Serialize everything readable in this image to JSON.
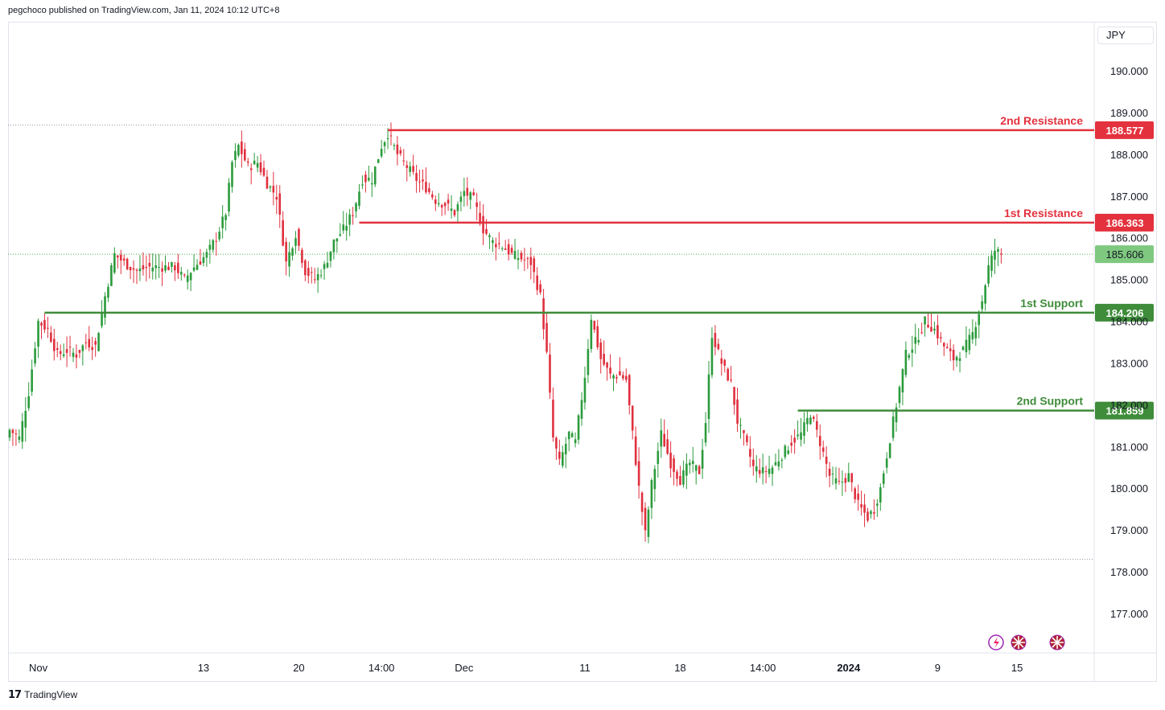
{
  "header": {
    "published": "pegchoco published on TradingView.com, Jan 11, 2024 10:12 UTC+8"
  },
  "footer": {
    "brand": "TradingView"
  },
  "price_scale": {
    "currency": "JPY"
  },
  "colors": {
    "up": "#2b9b3c",
    "down": "#e0303e",
    "resistance": "#e3323e",
    "support": "#3f8c3a",
    "last_price_bg": "#7fc87f"
  },
  "chart_data": {
    "type": "candlestick",
    "symbol_currency": "JPY",
    "ylim": [
      176.1,
      191.0
    ],
    "y_ticks": [
      "190.000",
      "189.000",
      "188.000",
      "187.000",
      "186.000",
      "185.000",
      "184.000",
      "183.000",
      "182.000",
      "181.000",
      "180.000",
      "179.000",
      "178.000",
      "177.000"
    ],
    "x_labels": [
      {
        "label": "Nov",
        "bold": false,
        "index": 9
      },
      {
        "label": "13",
        "bold": false,
        "index": 61
      },
      {
        "label": "20",
        "bold": false,
        "index": 91
      },
      {
        "label": "14:00",
        "bold": false,
        "index": 117
      },
      {
        "label": "Dec",
        "bold": false,
        "index": 143
      },
      {
        "label": "11",
        "bold": false,
        "index": 181
      },
      {
        "label": "18",
        "bold": false,
        "index": 211
      },
      {
        "label": "14:00",
        "bold": false,
        "index": 237
      },
      {
        "label": "2024",
        "bold": true,
        "index": 264
      },
      {
        "label": "9",
        "bold": false,
        "index": 292
      },
      {
        "label": "15",
        "bold": false,
        "index": 317
      }
    ],
    "levels": [
      {
        "name": "2nd Resistance",
        "value": 188.577,
        "label": "188.577",
        "kind": "resistance",
        "start_index": 119
      },
      {
        "name": "1st Resistance",
        "value": 186.363,
        "label": "186.363",
        "kind": "resistance",
        "start_index": 110
      },
      {
        "name": "1st Support",
        "value": 184.206,
        "label": "184.206",
        "kind": "support",
        "start_index": 11
      },
      {
        "name": "2nd Support",
        "value": 181.859,
        "label": "181.859",
        "kind": "support",
        "start_index": 248
      }
    ],
    "last_price": {
      "value": 185.606,
      "label": "185.606"
    },
    "high_marker": 188.7,
    "low_marker": 178.3,
    "anchors": [
      [
        0,
        181.4
      ],
      [
        3,
        181.2
      ],
      [
        6,
        182.3
      ],
      [
        9,
        184.0
      ],
      [
        12,
        183.8
      ],
      [
        15,
        183.2
      ],
      [
        18,
        183.3
      ],
      [
        21,
        183.2
      ],
      [
        24,
        183.5
      ],
      [
        27,
        183.4
      ],
      [
        30,
        184.6
      ],
      [
        33,
        185.6
      ],
      [
        36,
        185.4
      ],
      [
        40,
        185.2
      ],
      [
        44,
        185.3
      ],
      [
        48,
        185.3
      ],
      [
        52,
        185.3
      ],
      [
        55,
        185.0
      ],
      [
        58,
        185.3
      ],
      [
        62,
        185.6
      ],
      [
        65,
        186.0
      ],
      [
        68,
        186.6
      ],
      [
        70,
        187.8
      ],
      [
        72,
        188.2
      ],
      [
        75,
        187.7
      ],
      [
        78,
        187.8
      ],
      [
        81,
        187.3
      ],
      [
        84,
        187.0
      ],
      [
        87,
        185.4
      ],
      [
        90,
        186.1
      ],
      [
        93,
        185.2
      ],
      [
        96,
        185.0
      ],
      [
        99,
        185.3
      ],
      [
        102,
        185.9
      ],
      [
        105,
        186.2
      ],
      [
        108,
        186.6
      ],
      [
        111,
        187.4
      ],
      [
        114,
        187.4
      ],
      [
        117,
        188.2
      ],
      [
        119,
        188.5
      ],
      [
        122,
        188.0
      ],
      [
        125,
        187.7
      ],
      [
        128,
        187.4
      ],
      [
        131,
        187.2
      ],
      [
        134,
        186.9
      ],
      [
        137,
        186.8
      ],
      [
        140,
        186.6
      ],
      [
        143,
        187.1
      ],
      [
        146,
        186.9
      ],
      [
        149,
        186.2
      ],
      [
        152,
        185.9
      ],
      [
        155,
        185.8
      ],
      [
        158,
        185.6
      ],
      [
        161,
        185.5
      ],
      [
        164,
        185.4
      ],
      [
        167,
        184.6
      ],
      [
        169,
        183.2
      ],
      [
        171,
        181.2
      ],
      [
        173,
        180.6
      ],
      [
        176,
        181.3
      ],
      [
        178,
        181.1
      ],
      [
        181,
        182.7
      ],
      [
        183,
        184.1
      ],
      [
        186,
        183.1
      ],
      [
        189,
        182.7
      ],
      [
        192,
        182.7
      ],
      [
        194,
        182.6
      ],
      [
        196,
        181.3
      ],
      [
        198,
        180.0
      ],
      [
        200,
        178.9
      ],
      [
        202,
        180.1
      ],
      [
        205,
        181.3
      ],
      [
        208,
        180.6
      ],
      [
        211,
        180.2
      ],
      [
        214,
        180.6
      ],
      [
        217,
        180.4
      ],
      [
        219,
        181.6
      ],
      [
        221,
        183.7
      ],
      [
        224,
        183.0
      ],
      [
        227,
        182.5
      ],
      [
        229,
        181.6
      ],
      [
        232,
        181.0
      ],
      [
        234,
        180.5
      ],
      [
        237,
        180.4
      ],
      [
        240,
        180.5
      ],
      [
        243,
        180.8
      ],
      [
        246,
        181.1
      ],
      [
        249,
        181.3
      ],
      [
        252,
        181.8
      ],
      [
        255,
        181.1
      ],
      [
        258,
        180.3
      ],
      [
        261,
        180.1
      ],
      [
        264,
        180.3
      ],
      [
        267,
        179.6
      ],
      [
        270,
        179.3
      ],
      [
        272,
        179.5
      ],
      [
        274,
        180.0
      ],
      [
        276,
        180.8
      ],
      [
        279,
        182.0
      ],
      [
        282,
        183.2
      ],
      [
        285,
        183.5
      ],
      [
        288,
        184.0
      ],
      [
        291,
        183.8
      ],
      [
        294,
        183.4
      ],
      [
        297,
        183.1
      ],
      [
        300,
        183.3
      ],
      [
        303,
        183.7
      ],
      [
        306,
        184.5
      ],
      [
        308,
        185.3
      ],
      [
        310,
        185.7
      ],
      [
        312,
        185.6
      ]
    ]
  }
}
